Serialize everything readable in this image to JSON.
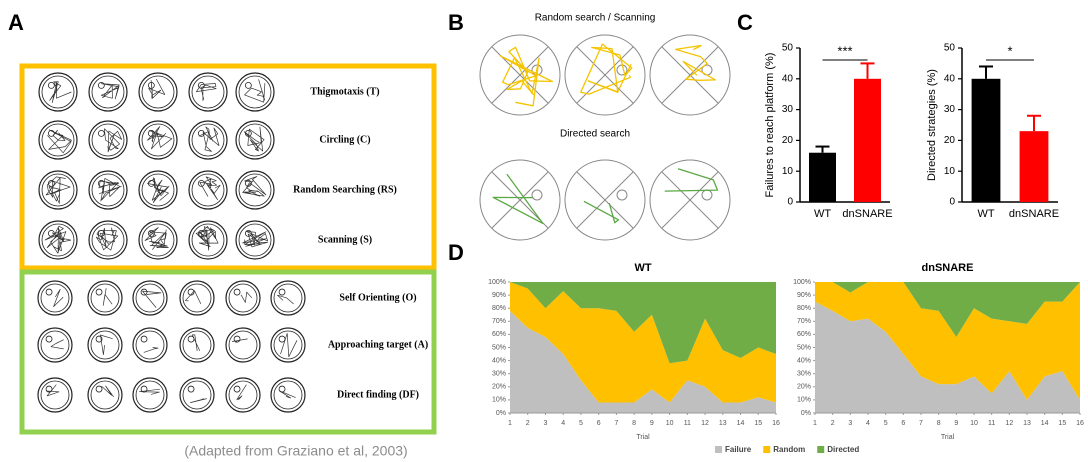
{
  "panels": {
    "a": "A",
    "b": "B",
    "c": "C",
    "d": "D"
  },
  "panel_a": {
    "strategies": [
      "Thigmotaxis (T)",
      "Circling (C)",
      "Random Searching (RS)",
      "Scanning (S)",
      "Self Orienting (O)",
      "Approaching target (A)",
      "Direct finding (DF)"
    ],
    "credit": "(Adapted from Graziano et al, 2003)"
  },
  "panel_b": {
    "random_title": "Random search / Scanning",
    "directed_title": "Directed search"
  },
  "chart_data": [
    {
      "type": "bar",
      "y_label": "Failures to reach platform (%)",
      "categories": [
        "WT",
        "dnSNARE"
      ],
      "values": [
        16,
        40
      ],
      "errors": [
        2,
        5
      ],
      "colors": [
        "#000000",
        "#ff0000"
      ],
      "ylim": [
        0,
        50
      ],
      "yticks": [
        0,
        10,
        20,
        30,
        40,
        50
      ],
      "annotation": "***"
    },
    {
      "type": "bar",
      "y_label": "Directed strategies (%)",
      "categories": [
        "WT",
        "dnSNARE"
      ],
      "values": [
        40,
        23
      ],
      "errors": [
        4,
        5
      ],
      "colors": [
        "#000000",
        "#ff0000"
      ],
      "ylim": [
        0,
        50
      ],
      "yticks": [
        0,
        10,
        20,
        30,
        40,
        50
      ],
      "annotation": "*"
    },
    {
      "type": "area",
      "title": "WT",
      "x_label": "Trial",
      "x": [
        1,
        2,
        3,
        4,
        5,
        6,
        7,
        8,
        9,
        10,
        11,
        12,
        13,
        14,
        15,
        16
      ],
      "xlim": [
        1,
        16
      ],
      "xticks": [
        1,
        2,
        3,
        4,
        5,
        6,
        7,
        8,
        9,
        10,
        11,
        12,
        13,
        14,
        15,
        16
      ],
      "ylim": [
        0,
        100
      ],
      "yticks": [
        {
          "value": 0,
          "label": "0%"
        },
        {
          "value": 10,
          "label": "10%"
        },
        {
          "value": 20,
          "label": "20%"
        },
        {
          "value": 30,
          "label": "30%"
        },
        {
          "value": 40,
          "label": "40%"
        },
        {
          "value": 50,
          "label": "50%"
        },
        {
          "value": 60,
          "label": "60%"
        },
        {
          "value": 70,
          "label": "70%"
        },
        {
          "value": 80,
          "label": "80%"
        },
        {
          "value": 90,
          "label": "90%"
        },
        {
          "value": 100,
          "label": "100%"
        }
      ],
      "series": [
        {
          "name": "Failure",
          "color": "#bfbfbf",
          "values": [
            78,
            65,
            58,
            45,
            25,
            8,
            8,
            8,
            18,
            8,
            25,
            20,
            8,
            8,
            12,
            8
          ]
        },
        {
          "name": "Random",
          "color": "#ffc000",
          "values": [
            22,
            30,
            22,
            48,
            55,
            72,
            70,
            54,
            57,
            30,
            15,
            52,
            40,
            34,
            38,
            37
          ]
        },
        {
          "name": "Directed",
          "color": "#70ad47",
          "values": [
            0,
            5,
            20,
            7,
            20,
            20,
            22,
            38,
            25,
            62,
            60,
            28,
            52,
            58,
            50,
            55
          ]
        }
      ]
    },
    {
      "type": "area",
      "title": "dnSNARE",
      "x_label": "Trial",
      "x": [
        1,
        2,
        3,
        4,
        5,
        6,
        7,
        8,
        9,
        10,
        11,
        12,
        13,
        14,
        15,
        16
      ],
      "xlim": [
        1,
        16
      ],
      "xticks": [
        1,
        2,
        3,
        4,
        5,
        6,
        7,
        8,
        9,
        10,
        11,
        12,
        13,
        14,
        15,
        16
      ],
      "ylim": [
        0,
        100
      ],
      "yticks": [
        {
          "value": 0,
          "label": "0%"
        },
        {
          "value": 10,
          "label": "10%"
        },
        {
          "value": 20,
          "label": "20%"
        },
        {
          "value": 30,
          "label": "30%"
        },
        {
          "value": 40,
          "label": "40%"
        },
        {
          "value": 50,
          "label": "50%"
        },
        {
          "value": 60,
          "label": "60%"
        },
        {
          "value": 70,
          "label": "70%"
        },
        {
          "value": 80,
          "label": "80%"
        },
        {
          "value": 90,
          "label": "90%"
        },
        {
          "value": 100,
          "label": "100%"
        }
      ],
      "legend": "bottom",
      "series": [
        {
          "name": "Failure",
          "color": "#bfbfbf",
          "values": [
            85,
            78,
            70,
            72,
            62,
            45,
            28,
            22,
            22,
            28,
            15,
            32,
            10,
            28,
            32,
            10
          ]
        },
        {
          "name": "Random",
          "color": "#ffc000",
          "values": [
            15,
            22,
            22,
            28,
            38,
            55,
            52,
            56,
            36,
            52,
            57,
            38,
            58,
            57,
            53,
            90
          ]
        },
        {
          "name": "Directed",
          "color": "#70ad47",
          "values": [
            0,
            0,
            8,
            0,
            0,
            0,
            20,
            22,
            42,
            20,
            28,
            30,
            32,
            15,
            15,
            0
          ]
        }
      ]
    }
  ]
}
